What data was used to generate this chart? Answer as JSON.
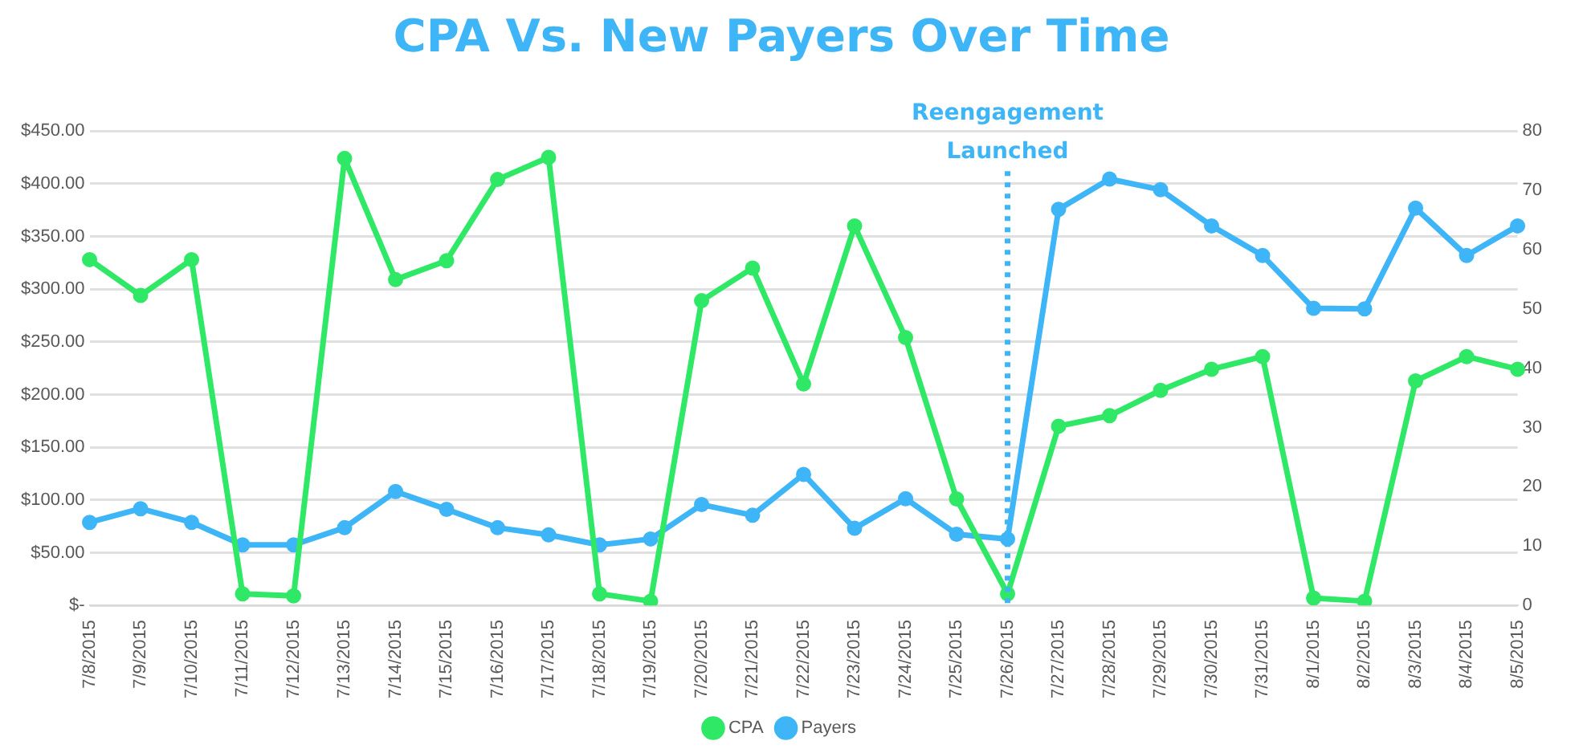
{
  "chart_data": {
    "type": "line",
    "title": "CPA Vs. New Payers Over Time",
    "categories": [
      "7/8/2015",
      "7/9/2015",
      "7/10/2015",
      "7/11/2015",
      "7/12/2015",
      "7/13/2015",
      "7/14/2015",
      "7/15/2015",
      "7/16/2015",
      "7/17/2015",
      "7/18/2015",
      "7/19/2015",
      "7/20/2015",
      "7/21/2015",
      "7/22/2015",
      "7/23/2015",
      "7/24/2015",
      "7/25/2015",
      "7/26/2015",
      "7/27/2015",
      "7/28/2015",
      "7/29/2015",
      "7/30/2015",
      "7/31/2015",
      "8/1/2015",
      "8/2/2015",
      "8/3/2015",
      "8/4/2015",
      "8/5/2015"
    ],
    "series": [
      {
        "name": "CPA",
        "color": "#2ee866",
        "values": [
          328,
          294,
          328,
          11,
          9,
          424,
          309,
          327,
          404,
          425,
          11,
          4,
          289,
          320,
          210,
          360,
          254,
          101,
          11,
          170,
          180,
          204,
          224,
          236,
          7,
          4,
          213,
          236,
          224
        ]
      },
      {
        "name": "Payers",
        "color": "#3db5f7",
        "axis": "y2",
        "values": [
          14,
          16.3,
          14,
          10.2,
          10.2,
          13.1,
          19.2,
          16.2,
          13.1,
          11.9,
          10.2,
          11.2,
          17,
          15.2,
          22.1,
          13,
          18,
          12,
          11.2,
          66.8,
          71.9,
          70.1,
          64,
          59,
          50.1,
          50,
          67,
          59,
          64
        ]
      }
    ],
    "ylim": [
      0,
      450
    ],
    "yticks": [
      {
        "value": 0,
        "label": "$-"
      },
      {
        "value": 50,
        "label": "$50.00"
      },
      {
        "value": 100,
        "label": "$100.00"
      },
      {
        "value": 150,
        "label": "$150.00"
      },
      {
        "value": 200,
        "label": "$200.00"
      },
      {
        "value": 250,
        "label": "$250.00"
      },
      {
        "value": 300,
        "label": "$300.00"
      },
      {
        "value": 350,
        "label": "$350.00"
      },
      {
        "value": 400,
        "label": "$400.00"
      },
      {
        "value": 450,
        "label": "$450.00"
      }
    ],
    "y2lim": [
      0,
      80
    ],
    "y2ticks": [
      0,
      10,
      20,
      30,
      40,
      50,
      60,
      70,
      80
    ],
    "ref_lines": [
      {
        "axis": "x",
        "value": "7/26/2015",
        "label": "Reengagement Launched",
        "color": "#3db5f7",
        "line_style": "dotted"
      }
    ],
    "grid": "y",
    "legend": "bottom",
    "marker": "circle",
    "line_style": "solid"
  }
}
